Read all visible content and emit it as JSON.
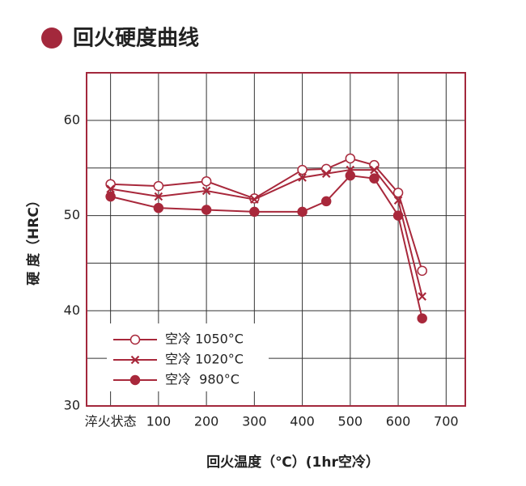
{
  "chart_data": {
    "type": "line",
    "title": "回火硬度曲线",
    "x_label": "回火温度（℃）(1hr空冷）",
    "y_label": "硬 度（HRC）",
    "xlim": [
      -50,
      740
    ],
    "ylim": [
      30,
      65
    ],
    "xticks": [
      {
        "value": 0,
        "label": "淬火状态"
      },
      100,
      200,
      300,
      400,
      500,
      600,
      700
    ],
    "yticks": [
      30,
      40,
      50,
      60
    ],
    "y_minor_grid": [
      35,
      45,
      55
    ],
    "grid": true,
    "frame_color": "#a3283c",
    "legend_position": "lower left",
    "series": [
      {
        "name": "空冷 1050°C",
        "color": "#a8283b",
        "marker": "open-circle",
        "x": [
          0,
          100,
          200,
          300,
          400,
          450,
          500,
          550,
          600,
          650
        ],
        "values": [
          53.3,
          53.1,
          53.6,
          51.8,
          54.8,
          54.9,
          56.0,
          55.3,
          52.4,
          44.2
        ]
      },
      {
        "name": "空冷 1020°C",
        "color": "#a8283b",
        "marker": "cross",
        "x": [
          0,
          100,
          200,
          300,
          400,
          450,
          500,
          550,
          600,
          650
        ],
        "values": [
          52.8,
          52.0,
          52.6,
          51.7,
          54.0,
          54.4,
          54.8,
          54.8,
          51.6,
          41.5
        ]
      },
      {
        "name": "空冷  980°C",
        "color": "#a8283b",
        "marker": "filled-circle",
        "x": [
          0,
          100,
          200,
          300,
          400,
          450,
          500,
          550,
          600,
          650
        ],
        "values": [
          52.0,
          50.8,
          50.6,
          50.4,
          50.4,
          51.5,
          54.2,
          53.9,
          50.0,
          39.2
        ]
      }
    ]
  }
}
